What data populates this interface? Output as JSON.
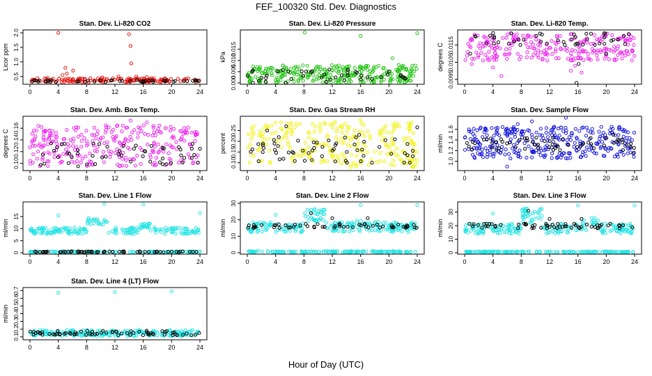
{
  "page_title": "FEF_100320  Std. Dev. Diagnostics",
  "x_caption": "Hour of Day (UTC)",
  "colors": {
    "red": "#e8140e",
    "green": "#22c414",
    "magenta": "#ee22ee",
    "yellow": "#f2f200",
    "blue": "#1515dd",
    "cyan": "#22e4e4",
    "black": "#000000"
  },
  "chart_data": [
    {
      "type": "scatter",
      "title": "Stan. Dev. Li-820 CO2",
      "ylabel": "Licor ppm",
      "xlim": [
        0,
        24
      ],
      "ylim": [
        0.28,
        2.05
      ],
      "xticks": [
        "0",
        "4",
        "8",
        "12",
        "16",
        "20",
        "24"
      ],
      "yticks": [
        {
          "v": 0.5,
          "t": "0.5"
        },
        {
          "v": 1.0,
          "t": "1.0"
        },
        {
          "v": 1.5,
          "t": "1.5"
        },
        {
          "v": 2.0,
          "t": "2.0"
        }
      ],
      "series": [
        {
          "color": "red",
          "values": [
            [
              4.0,
              2.0
            ],
            [
              5.0,
              0.8
            ],
            [
              5.2,
              0.6
            ],
            [
              6.1,
              0.7
            ],
            [
              4.6,
              0.55
            ],
            [
              14.0,
              1.95
            ],
            [
              14.2,
              1.55
            ],
            [
              14.3,
              0.95
            ],
            [
              15.0,
              0.5
            ],
            [
              16.5,
              0.48
            ],
            [
              10.2,
              0.47
            ],
            [
              12.5,
              0.5
            ],
            [
              2.5,
              0.45
            ]
          ],
          "band": {
            "lo": 0.3,
            "hi": 0.44,
            "n": 150
          }
        },
        {
          "color": "black",
          "values": [
            [
              3.0,
              0.38
            ],
            [
              8.2,
              0.36
            ],
            [
              13.0,
              0.35
            ],
            [
              23.0,
              0.35
            ]
          ],
          "band": {
            "lo": 0.31,
            "hi": 0.38,
            "n": 40
          }
        }
      ]
    },
    {
      "type": "scatter",
      "title": "Stan. Dev. Li-820 Pressure",
      "ylabel": "kPa",
      "xlim": [
        0,
        24
      ],
      "ylim": [
        0,
        0.023
      ],
      "xticks": [
        "0",
        "4",
        "8",
        "12",
        "16",
        "20",
        "24"
      ],
      "yticks": [
        {
          "v": 0.0,
          "t": "0.000"
        },
        {
          "v": 0.005,
          "t": "0.005"
        },
        {
          "v": 0.01,
          "t": "0.010"
        },
        {
          "v": 0.015,
          "t": "0.015"
        }
      ],
      "series": [
        {
          "color": "green",
          "values": [
            [
              8.1,
              0.0225
            ],
            [
              16.0,
              0.021
            ],
            [
              24.0,
              0.0222
            ],
            [
              20.5,
              0.011
            ]
          ],
          "band": {
            "lo": 0.0,
            "hi": 0.008,
            "n": 300
          }
        },
        {
          "color": "black",
          "values": [
            [
              8.3,
              0.005
            ],
            [
              11.6,
              0.006
            ],
            [
              20.0,
              0.005
            ],
            [
              0.8,
              0.0
            ]
          ],
          "band": {
            "lo": 0.0,
            "hi": 0.006,
            "n": 40
          }
        }
      ]
    },
    {
      "type": "scatter",
      "title": "Stan. Dev. Li-820 Temp.",
      "ylabel": "degrees C",
      "xlim": [
        0,
        24
      ],
      "ylim": [
        0.0093,
        0.0123
      ],
      "xticks": [
        "0",
        "4",
        "8",
        "12",
        "16",
        "20",
        "24"
      ],
      "yticks": [
        {
          "v": 0.0095,
          "t": "0.0095"
        },
        {
          "v": 0.0105,
          "t": "0.0105"
        },
        {
          "v": 0.0115,
          "t": "0.0115"
        }
      ],
      "series": [
        {
          "color": "magenta",
          "values": [
            [
              1.0,
              0.0104
            ],
            [
              4.0,
              0.0102
            ],
            [
              5.2,
              0.0097
            ],
            [
              15.0,
              0.01
            ],
            [
              16.5,
              0.0099
            ],
            [
              15.6,
              0.0103
            ]
          ],
          "band": {
            "lo": 0.0106,
            "hi": 0.0122,
            "n": 250
          }
        },
        {
          "color": "black",
          "values": [
            [
              15.8,
              0.0093
            ],
            [
              16.1,
              0.0104
            ],
            [
              0.8,
              0.011
            ],
            [
              20.0,
              0.011
            ]
          ],
          "band": {
            "lo": 0.0115,
            "hi": 0.0122,
            "n": 45
          }
        }
      ]
    },
    {
      "type": "scatter",
      "title": "Stan. Dev. Amb. Box Temp.",
      "ylabel": "degrees C",
      "xlim": [
        0,
        24
      ],
      "ylim": [
        0.09,
        0.178
      ],
      "xticks": [
        "0",
        "4",
        "8",
        "12",
        "16",
        "20",
        "24"
      ],
      "yticks": [
        {
          "v": 0.1,
          "t": "0.10"
        },
        {
          "v": 0.12,
          "t": "0.12"
        },
        {
          "v": 0.14,
          "t": "0.14"
        },
        {
          "v": 0.16,
          "t": "0.16"
        }
      ],
      "series": [
        {
          "color": "magenta",
          "values": [
            [
              14.2,
              0.173
            ],
            [
              16.5,
              0.17
            ]
          ],
          "band": {
            "lo": 0.095,
            "hi": 0.165,
            "n": 280
          }
        },
        {
          "color": "black",
          "values": [
            [
              9.8,
              0.133
            ],
            [
              13.2,
              0.13
            ],
            [
              24.0,
              0.125
            ],
            [
              6.8,
              0.095
            ]
          ],
          "band": {
            "lo": 0.097,
            "hi": 0.135,
            "n": 50
          }
        }
      ]
    },
    {
      "type": "scatter",
      "title": "Stan. Dev. Gas Stream RH",
      "ylabel": "percent",
      "xlim": [
        0,
        24
      ],
      "ylim": [
        0.07,
        0.31
      ],
      "xticks": [
        "0",
        "4",
        "8",
        "12",
        "16",
        "20",
        "24"
      ],
      "yticks": [
        {
          "v": 0.1,
          "t": "0.10"
        },
        {
          "v": 0.15,
          "t": "0.15"
        },
        {
          "v": 0.2,
          "t": "0.20"
        },
        {
          "v": 0.25,
          "t": "0.25"
        }
      ],
      "series": [
        {
          "color": "yellow",
          "values": [
            [
              16.0,
              0.3
            ],
            [
              11.0,
              0.28
            ]
          ],
          "band": {
            "lo": 0.08,
            "hi": 0.29,
            "n": 260
          }
        },
        {
          "color": "black",
          "values": [
            [
              5.5,
              0.27
            ],
            [
              24.0,
              0.265
            ],
            [
              2.8,
              0.25
            ],
            [
              15.8,
              0.23
            ]
          ],
          "band": {
            "lo": 0.1,
            "hi": 0.22,
            "n": 60
          }
        }
      ]
    },
    {
      "type": "scatter",
      "title": "Stan. Dev. Sample Flow",
      "ylabel": "ml/min",
      "xlim": [
        0,
        24
      ],
      "ylim": [
        0.85,
        1.82
      ],
      "xticks": [
        "0",
        "4",
        "8",
        "12",
        "16",
        "20",
        "24"
      ],
      "yticks": [
        {
          "v": 1.0,
          "t": "1.0"
        },
        {
          "v": 1.2,
          "t": "1.2"
        },
        {
          "v": 1.4,
          "t": "1.4"
        },
        {
          "v": 1.6,
          "t": "1.6"
        }
      ],
      "series": [
        {
          "color": "blue",
          "values": [
            [
              14.3,
              1.82
            ],
            [
              6.0,
              0.9
            ],
            [
              9.5,
              1.75
            ],
            [
              7.5,
              1.7
            ]
          ],
          "band": {
            "lo": 1.05,
            "hi": 1.65,
            "n": 320
          }
        },
        {
          "color": "black",
          "values": [
            [
              23.8,
              1.15
            ],
            [
              21.0,
              1.5
            ]
          ],
          "band": {
            "lo": 1.2,
            "hi": 1.45,
            "n": 60
          }
        }
      ]
    },
    {
      "type": "scatter",
      "title": "Stan. Dev. Line 1 Flow",
      "ylabel": "ml/min",
      "xlim": [
        0,
        24
      ],
      "ylim": [
        0,
        20.5
      ],
      "xticks": [
        "0",
        "4",
        "8",
        "12",
        "16",
        "20",
        "24"
      ],
      "yticks": [
        {
          "v": 0,
          "t": "0"
        },
        {
          "v": 5,
          "t": "5"
        },
        {
          "v": 10,
          "t": "10"
        },
        {
          "v": 15,
          "t": "15"
        }
      ],
      "series": [
        {
          "color": "cyan",
          "values": [
            [
              4.0,
              15.5
            ],
            [
              10.5,
              20.3
            ],
            [
              16.0,
              20.0
            ],
            [
              24.0,
              16.5
            ]
          ],
          "band": {
            "lo": 7.8,
            "hi": 10.5,
            "n": 220
          },
          "steps": [
            [
              8.0,
              11.0,
              11.5,
              14.5
            ],
            [
              15.5,
              17.0,
              10.0,
              12.5
            ]
          ]
        },
        {
          "color": "cyan",
          "values": [],
          "band": {
            "lo": 0.2,
            "hi": 0.6,
            "n": 120
          }
        },
        {
          "color": "black",
          "values": [],
          "band": {
            "lo": 0.2,
            "hi": 0.6,
            "n": 60
          }
        }
      ]
    },
    {
      "type": "scatter",
      "title": "Stan. Dev. Line 2 Flow",
      "ylabel": "ml/min",
      "xlim": [
        0,
        24
      ],
      "ylim": [
        0,
        30
      ],
      "xticks": [
        "0",
        "4",
        "8",
        "12",
        "16",
        "20",
        "24"
      ],
      "yticks": [
        {
          "v": 0,
          "t": "0"
        },
        {
          "v": 10,
          "t": "10"
        },
        {
          "v": 20,
          "t": "20"
        },
        {
          "v": 30,
          "t": "30"
        }
      ],
      "series": [
        {
          "color": "cyan",
          "values": [
            [
              4.0,
              23.0
            ],
            [
              16.0,
              29.0
            ],
            [
              24.0,
              29.0
            ]
          ],
          "band": {
            "lo": 12.5,
            "hi": 18.5,
            "n": 240
          },
          "steps": [
            [
              8.0,
              11.0,
              19.0,
              26.5
            ],
            [
              15.5,
              19.0,
              13.0,
              20.0
            ]
          ]
        },
        {
          "color": "cyan",
          "values": [],
          "band": {
            "lo": 0.3,
            "hi": 1.0,
            "n": 140
          }
        },
        {
          "color": "black",
          "values": [
            [
              9.0,
              24.0
            ],
            [
              12.0,
              21.0
            ],
            [
              17.0,
              21.0
            ]
          ],
          "band": {
            "lo": 15.0,
            "hi": 17.5,
            "n": 60
          }
        }
      ]
    },
    {
      "type": "scatter",
      "title": "Stan. Dev. Line 3 Flow",
      "ylabel": "ml/min",
      "xlim": [
        0,
        24
      ],
      "ylim": [
        0,
        36.5
      ],
      "xticks": [
        "0",
        "4",
        "8",
        "12",
        "16",
        "20",
        "24"
      ],
      "yticks": [
        {
          "v": 0,
          "t": "0"
        },
        {
          "v": 10,
          "t": "10"
        },
        {
          "v": 20,
          "t": "20"
        },
        {
          "v": 30,
          "t": "30"
        }
      ],
      "series": [
        {
          "color": "cyan",
          "values": [
            [
              4.0,
              29.0
            ],
            [
              24.0,
              35.0
            ],
            [
              16.0,
              35.0
            ]
          ],
          "band": {
            "lo": 14.0,
            "hi": 21.5,
            "n": 240
          },
          "steps": [
            [
              8.0,
              11.0,
              22.0,
              33.0
            ],
            [
              15.5,
              19.0,
              16.0,
              26.0
            ]
          ]
        },
        {
          "color": "cyan",
          "values": [],
          "band": {
            "lo": 0.3,
            "hi": 1.0,
            "n": 140
          }
        },
        {
          "color": "black",
          "values": [
            [
              9.0,
              31.0
            ],
            [
              12.0,
              25.0
            ],
            [
              16.5,
              25.0
            ]
          ],
          "band": {
            "lo": 18.0,
            "hi": 21.5,
            "n": 60
          }
        }
      ]
    },
    {
      "type": "scatter",
      "title": "Stan. Dev. Line 4 (LT) Flow",
      "ylabel": "ml/min",
      "xlim": [
        0,
        24
      ],
      "ylim": [
        0.08,
        0.72
      ],
      "xticks": [
        "0",
        "4",
        "8",
        "12",
        "16",
        "20",
        "24"
      ],
      "yticks": [
        {
          "v": 0.1,
          "t": "0.1"
        },
        {
          "v": 0.2,
          "t": "0.2"
        },
        {
          "v": 0.3,
          "t": "0.3"
        },
        {
          "v": 0.4,
          "t": "0.4"
        },
        {
          "v": 0.5,
          "t": "0.5"
        },
        {
          "v": 0.6,
          "t": "0.6"
        },
        {
          "v": 0.7,
          "t": "0.7"
        }
      ],
      "series": [
        {
          "color": "cyan",
          "values": [
            [
              4.0,
              0.67
            ],
            [
              12.0,
              0.68
            ],
            [
              20.0,
              0.69
            ]
          ],
          "band": {
            "lo": 0.11,
            "hi": 0.19,
            "n": 220
          }
        },
        {
          "color": "black",
          "values": [],
          "band": {
            "lo": 0.12,
            "hi": 0.18,
            "n": 70
          }
        }
      ]
    }
  ]
}
